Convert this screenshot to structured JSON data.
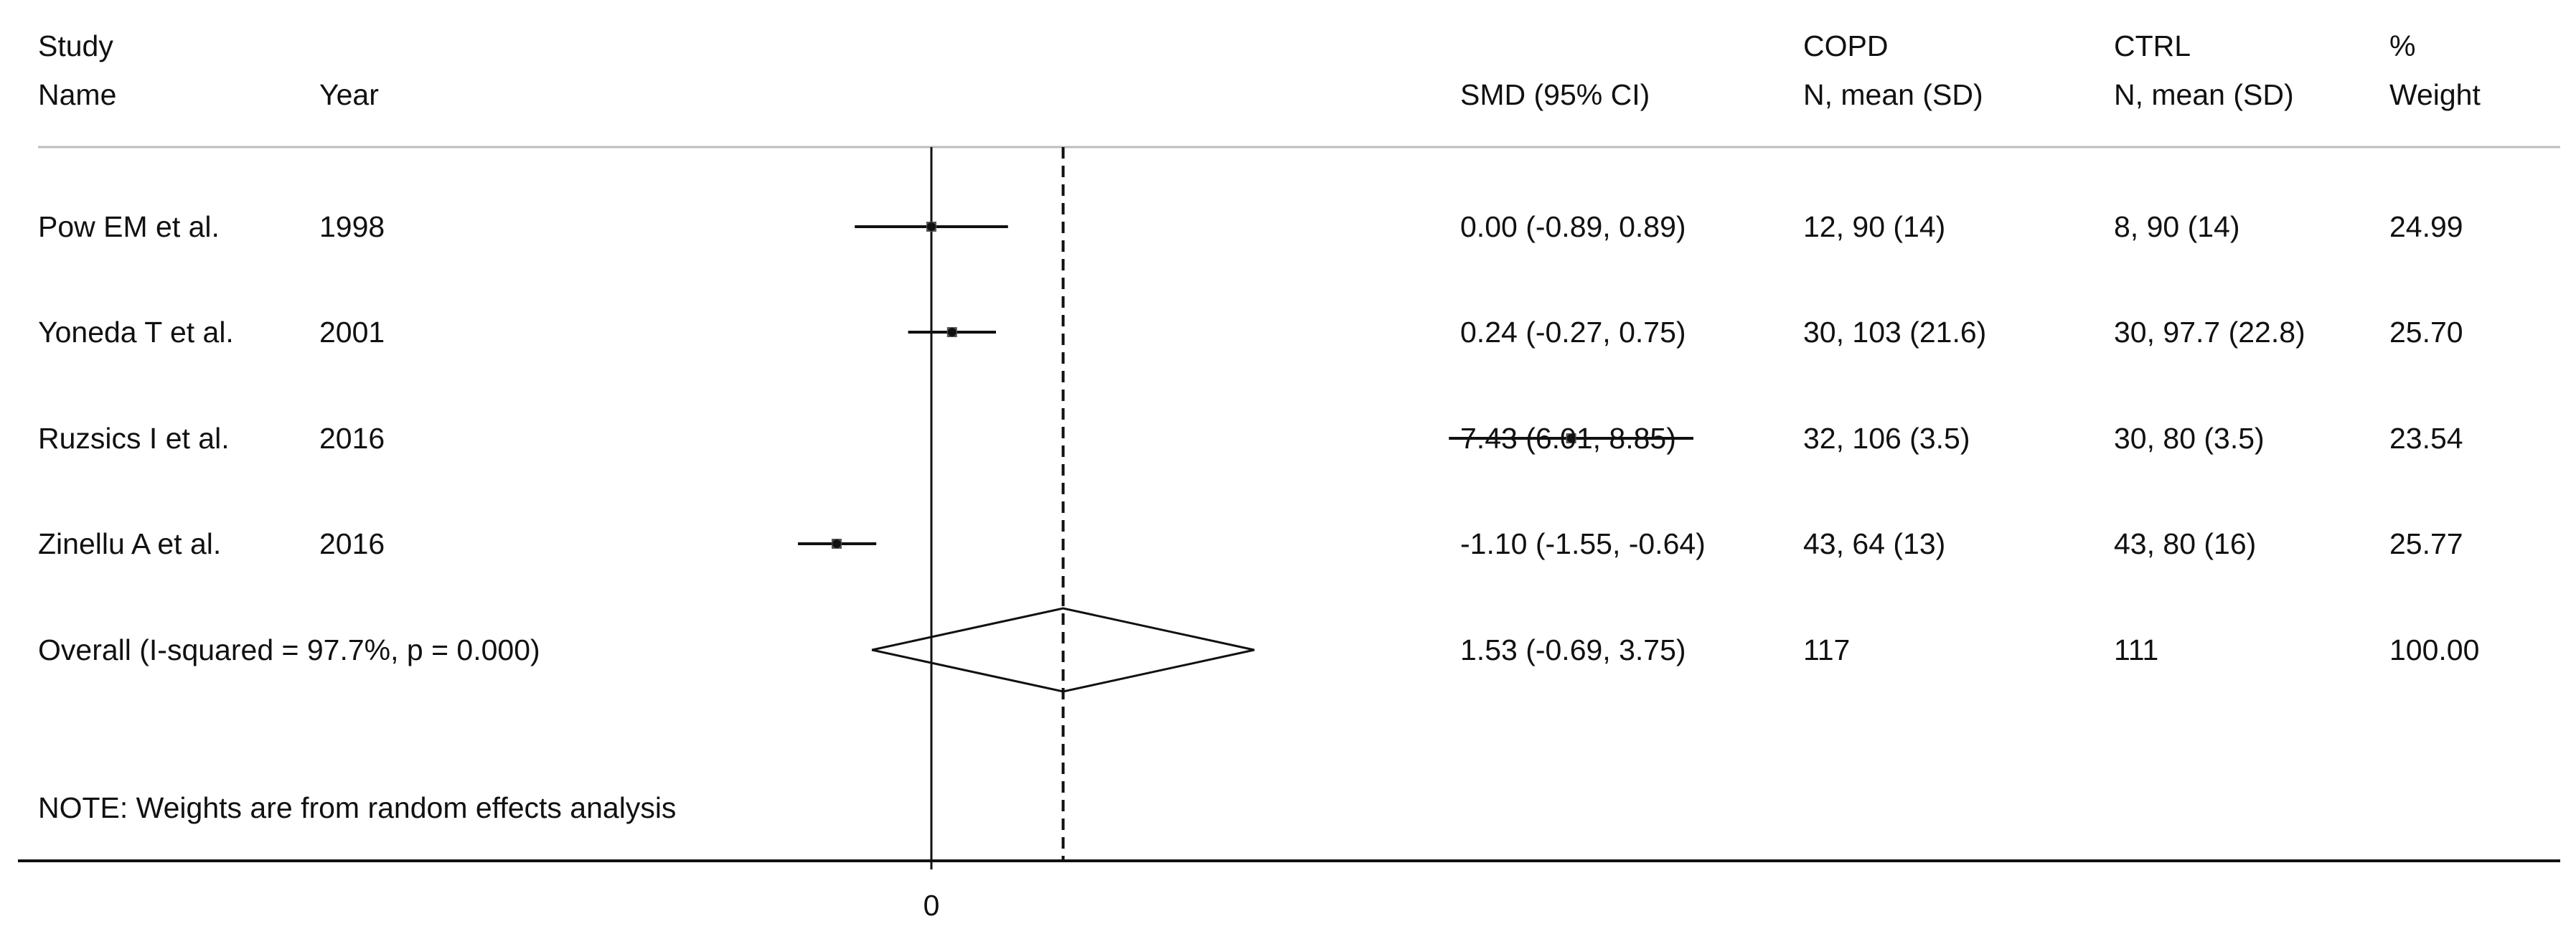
{
  "headers": {
    "study_line1": "Study",
    "study_line2": "Name",
    "year": "Year",
    "smd": "SMD (95% CI)",
    "copd_line1": "COPD",
    "copd_line2": "N, mean (SD)",
    "ctrl_line1": "CTRL",
    "ctrl_line2": "N, mean (SD)",
    "weight_line1": "%",
    "weight_line2": "Weight"
  },
  "note": "NOTE: Weights are from random effects analysis",
  "chart_data": {
    "type": "forest",
    "x_tick": {
      "value": 0,
      "label": "0"
    },
    "null_line": 0,
    "overall_line": 1.53,
    "studies": [
      {
        "name": "Pow EM et al.",
        "year": "1998",
        "smd": 0.0,
        "lo": -0.89,
        "hi": 0.89,
        "ci_text": "0.00 (-0.89, 0.89)",
        "copd": "12, 90 (14)",
        "ctrl": "8, 90 (14)",
        "weight": "24.99"
      },
      {
        "name": "Yoneda T et al.",
        "year": "2001",
        "smd": 0.24,
        "lo": -0.27,
        "hi": 0.75,
        "ci_text": "0.24 (-0.27, 0.75)",
        "copd": "30, 103 (21.6)",
        "ctrl": "30, 97.7 (22.8)",
        "weight": "25.70"
      },
      {
        "name": "Ruzsics I et al.",
        "year": "2016",
        "smd": 7.43,
        "lo": 6.01,
        "hi": 8.85,
        "ci_text": "7.43 (6.01, 8.85)",
        "copd": "32, 106 (3.5)",
        "ctrl": "30, 80 (3.5)",
        "weight": "23.54"
      },
      {
        "name": "Zinellu A et al.",
        "year": "2016",
        "smd": -1.1,
        "lo": -1.55,
        "hi": -0.64,
        "ci_text": "-1.10 (-1.55, -0.64)",
        "copd": "43, 64 (13)",
        "ctrl": "43, 80 (16)",
        "weight": "25.77"
      }
    ],
    "overall": {
      "label": "Overall  (I-squared = 97.7%, p = 0.000)",
      "smd": 1.53,
      "lo": -0.69,
      "hi": 3.75,
      "ci_text": "1.53 (-0.69, 3.75)",
      "copd": "117",
      "ctrl": "111",
      "weight": "100.00"
    }
  }
}
